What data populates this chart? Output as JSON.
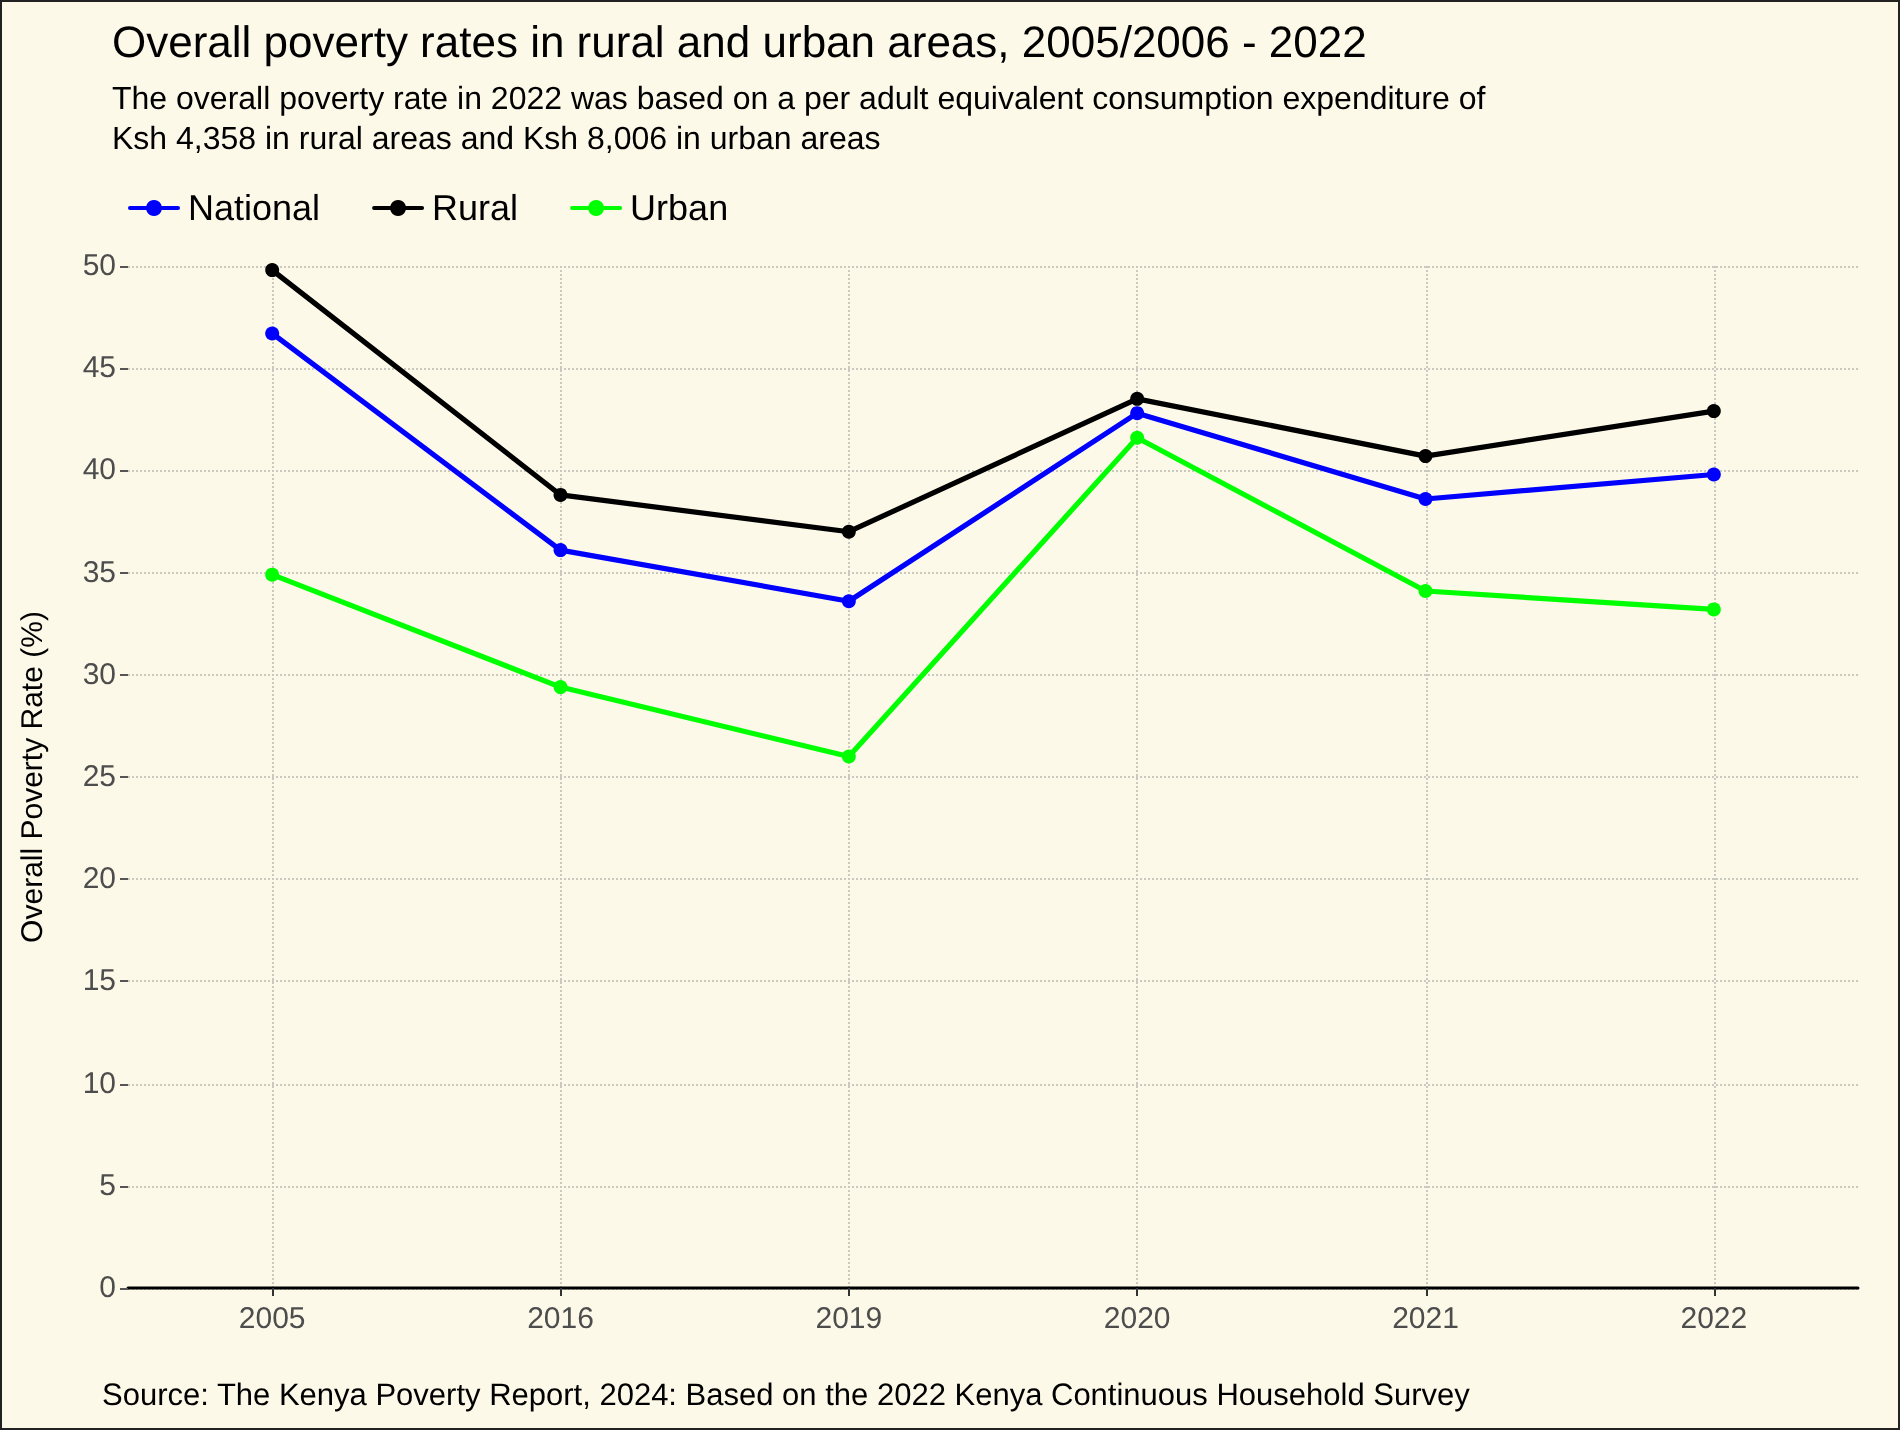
{
  "chart_data": {
    "type": "line",
    "title": "Overall poverty rates in rural and urban areas, 2005/2006 - 2022",
    "subtitle": "The overall poverty rate in 2022 was based on a per adult equivalent consumption expenditure of Ksh 4,358 in rural areas and Ksh 8,006 in urban areas",
    "ylabel": "Overall Poverty Rate (%)",
    "annotations": [
      "Source: The Kenya Poverty Report, 2024: Based on the 2022 Kenya Continuous Household Survey"
    ],
    "categories": [
      "2005",
      "2016",
      "2019",
      "2020",
      "2021",
      "2022"
    ],
    "series": [
      {
        "name": "National",
        "color": "#0000ff",
        "values": [
          46.7,
          36.1,
          33.6,
          42.8,
          38.6,
          39.8
        ]
      },
      {
        "name": "Rural",
        "color": "#000000",
        "values": [
          49.8,
          38.8,
          37.0,
          43.5,
          40.7,
          42.9
        ]
      },
      {
        "name": "Urban",
        "color": "#00ff00",
        "values": [
          34.9,
          29.4,
          26.0,
          41.6,
          34.1,
          33.2
        ]
      }
    ],
    "ylim": [
      0,
      50
    ],
    "yticks": [
      0,
      5,
      10,
      15,
      20,
      25,
      30,
      35,
      40,
      45,
      50
    ],
    "grid": true,
    "legend": "top left",
    "marker": "circle",
    "line_style": "solid"
  }
}
